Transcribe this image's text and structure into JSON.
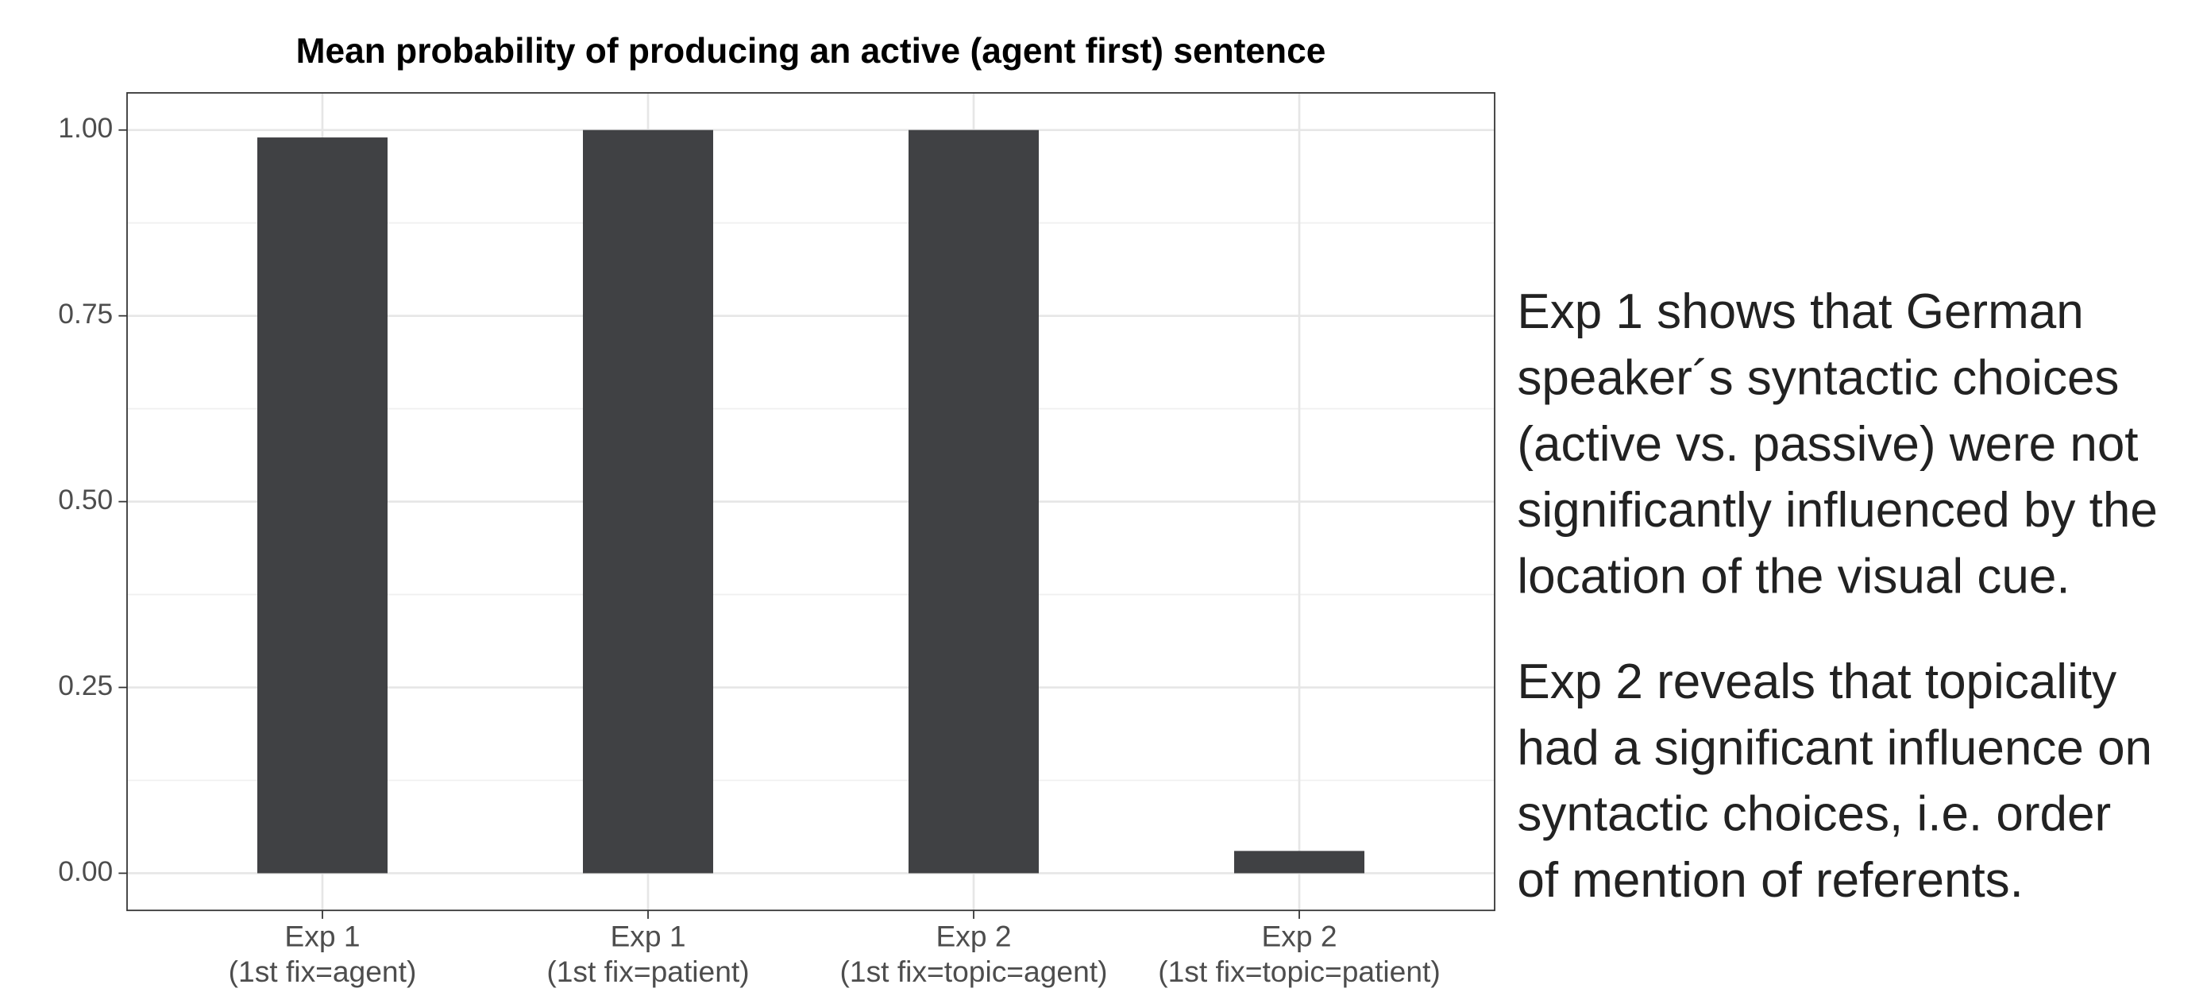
{
  "chart_data": {
    "type": "bar",
    "title": "Mean probability of producing an active (agent first) sentence",
    "categories": [
      [
        "Exp 1",
        "(1st fix=agent)"
      ],
      [
        "Exp 1",
        "(1st fix=patient)"
      ],
      [
        "Exp 2",
        "(1st fix=topic=agent)"
      ],
      [
        "Exp 2",
        "(1st fix=topic=patient)"
      ]
    ],
    "values": [
      0.99,
      1.0,
      1.0,
      0.03
    ],
    "color": "#404144",
    "ylim": [
      -0.05,
      1.05
    ],
    "yticks": [
      {
        "value": 0,
        "label": "0.00"
      },
      {
        "value": 0.25,
        "label": "0.25"
      },
      {
        "value": 0.5,
        "label": "0.50"
      },
      {
        "value": 0.75,
        "label": "0.75"
      },
      {
        "value": 1,
        "label": "1.00"
      }
    ],
    "minor_yticks": [
      0.125,
      0.375,
      0.625,
      0.875
    ],
    "grid": true,
    "annotations": [
      [
        "Exp 1 shows that German",
        "speaker´s syntactic choices",
        "(active vs. passive) were not",
        "significantly influenced by the",
        "location of the visual cue."
      ],
      [
        "Exp 2 reveals that topicality",
        "had a significant influence on",
        "syntactic choices, i.e. order",
        "of mention of referents."
      ]
    ]
  }
}
